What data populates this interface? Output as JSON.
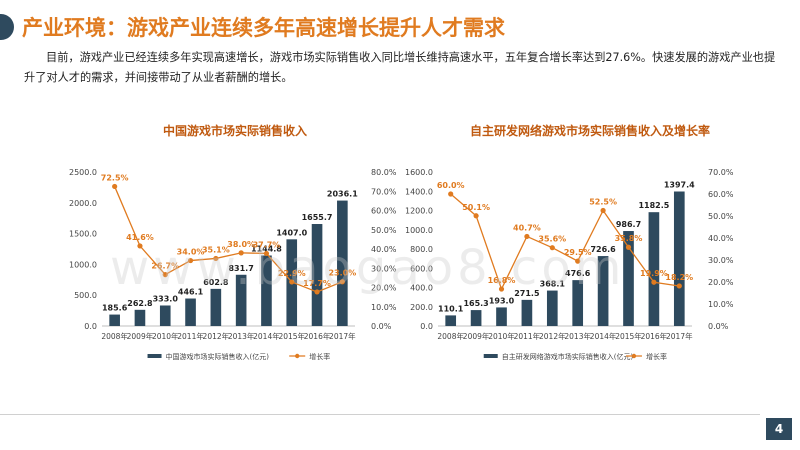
{
  "header": {
    "title": "产业环境：游戏产业连续多年高速增长提升人才需求"
  },
  "intro_text": "目前，游戏产业已经连续多年实现高速增长，游戏市场实际销售收入同比增长维持高速水平，五年复合增长率达到27.6%。快速发展的游戏产业也提升了对人才的需求，并间接带动了从业者薪酬的增长。",
  "watermark": "www.baogao8.com",
  "page_number": "4",
  "colors": {
    "bar": "#2e4a5e",
    "line": "#e07b20",
    "title": "#e07b20"
  },
  "chart_data": [
    {
      "type": "bar",
      "title": "中国游戏市场实际销售收入",
      "categories": [
        "2008年",
        "2009年",
        "2010年",
        "2011年",
        "2012年",
        "2013年",
        "2014年",
        "2015年",
        "2016年",
        "2017年"
      ],
      "series": [
        {
          "name": "中国游戏市场实际销售收入(亿元)",
          "type": "bar",
          "axis": "left",
          "values": [
            185.6,
            262.8,
            333.0,
            446.1,
            602.8,
            831.7,
            1144.8,
            1407.0,
            1655.7,
            2036.1
          ],
          "labels": [
            "185.6",
            "262.8",
            "333.0",
            "446.1",
            "602.8",
            "831.7",
            "1144.8",
            "1407.0",
            "1655.7",
            "2036.1"
          ]
        },
        {
          "name": "增长率",
          "type": "line",
          "axis": "right",
          "values": [
            72.5,
            41.6,
            26.7,
            34.0,
            35.1,
            38.0,
            37.7,
            22.9,
            17.7,
            23.0
          ],
          "labels": [
            "72.5%",
            "41.6%",
            "26.7%",
            "34.0%",
            "35.1%",
            "38.0%",
            "37.7%",
            "22.9%",
            "17.7%",
            "23.0%"
          ]
        }
      ],
      "y_left": {
        "min": 0,
        "max": 2500,
        "ticks": [
          "0.0",
          "500.0",
          "1000.0",
          "1500.0",
          "2000.0",
          "2500.0"
        ]
      },
      "y_right": {
        "min": 0,
        "max": 80,
        "ticks": [
          "0.0%",
          "10.0%",
          "20.0%",
          "30.0%",
          "40.0%",
          "50.0%",
          "60.0%",
          "70.0%",
          "80.0%"
        ]
      },
      "legend_position": "bottom"
    },
    {
      "type": "bar",
      "title": "自主研发网络游戏市场实际销售收入及增长率",
      "categories": [
        "2008年",
        "2009年",
        "2010年",
        "2011年",
        "2012年",
        "2013年",
        "2014年",
        "2015年",
        "2016年",
        "2017年"
      ],
      "series": [
        {
          "name": "自主研发网络游戏市场实际销售收入(亿元)",
          "type": "bar",
          "axis": "left",
          "values": [
            110.1,
            165.3,
            193.0,
            271.5,
            368.1,
            476.6,
            726.6,
            986.7,
            1182.5,
            1397.4
          ],
          "labels": [
            "110.1",
            "165.3",
            "193.0",
            "271.5",
            "368.1",
            "476.6",
            "726.6",
            "986.7",
            "1182.5",
            "1397.4"
          ]
        },
        {
          "name": "增长率",
          "type": "line",
          "axis": "right",
          "values": [
            60.0,
            50.1,
            16.8,
            40.7,
            35.6,
            29.5,
            52.5,
            35.8,
            19.9,
            18.2
          ],
          "labels": [
            "60.0%",
            "50.1%",
            "16.8%",
            "40.7%",
            "35.6%",
            "29.5%",
            "52.5%",
            "35.8%",
            "19.9%",
            "18.2%"
          ]
        }
      ],
      "y_left": {
        "min": 0,
        "max": 1600,
        "ticks": [
          "0.0",
          "200.0",
          "400.0",
          "600.0",
          "800.0",
          "1000.0",
          "1200.0",
          "1400.0",
          "1600.0"
        ]
      },
      "y_right": {
        "min": 0,
        "max": 70,
        "ticks": [
          "0.0%",
          "10.0%",
          "20.0%",
          "30.0%",
          "40.0%",
          "50.0%",
          "60.0%",
          "70.0%"
        ]
      },
      "legend_position": "bottom"
    }
  ]
}
